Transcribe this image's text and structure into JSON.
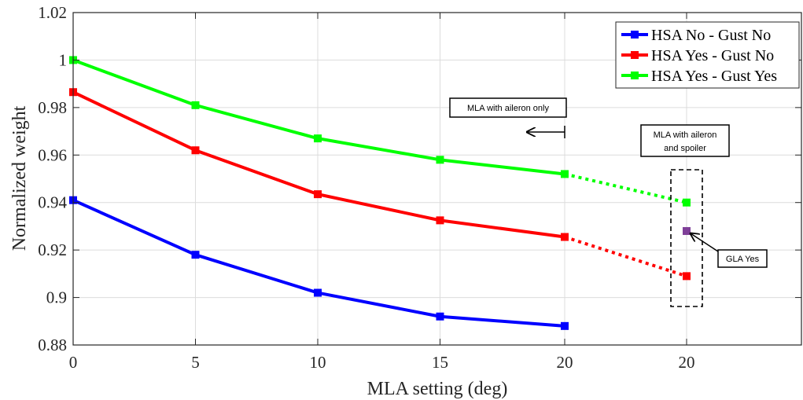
{
  "chart_data": {
    "type": "line",
    "xlabel": "MLA setting (deg)",
    "ylabel": "Normalized weight",
    "x_tick_labels": [
      "0",
      "5",
      "10",
      "15",
      "20",
      "20"
    ],
    "y_ticks": [
      0.88,
      0.9,
      0.92,
      0.94,
      0.96,
      0.98,
      1.0,
      1.02
    ],
    "y_tick_labels": [
      "0.88",
      "0.9",
      "0.92",
      "0.94",
      "0.96",
      "0.98",
      "1",
      "1.02"
    ],
    "ylim": [
      0.88,
      1.02
    ],
    "grid": true,
    "legend_position": "top-right",
    "series": [
      {
        "name": "HSA No - Gust No",
        "color": "#0000ff",
        "x_labels": [
          "0",
          "5",
          "10",
          "15",
          "20"
        ],
        "values": [
          0.941,
          0.918,
          0.902,
          0.892,
          0.888
        ]
      },
      {
        "name": "HSA Yes - Gust No",
        "color": "#ff0000",
        "x_labels": [
          "0",
          "5",
          "10",
          "15",
          "20"
        ],
        "values": [
          0.9865,
          0.962,
          0.9435,
          0.9325,
          0.9255
        ],
        "extension": {
          "x_label": "20",
          "value": 0.909,
          "style": "dotted"
        }
      },
      {
        "name": "HSA Yes - Gust Yes",
        "color": "#00ff00",
        "x_labels": [
          "0",
          "5",
          "10",
          "15",
          "20"
        ],
        "values": [
          1.0,
          0.981,
          0.967,
          0.958,
          0.952
        ],
        "extension": {
          "x_label": "20",
          "value": 0.94,
          "style": "dotted"
        }
      }
    ],
    "extra_points": [
      {
        "label": "GLA Yes",
        "x_label": "20",
        "value": 0.928,
        "color": "#7f3f98"
      }
    ],
    "annotations": [
      {
        "id": "aileron_only",
        "text": "MLA with aileron only"
      },
      {
        "id": "aileron_spoiler",
        "lines": [
          "MLA with aileron",
          "and spoiler"
        ]
      },
      {
        "id": "gla",
        "text": "GLA Yes"
      }
    ]
  }
}
